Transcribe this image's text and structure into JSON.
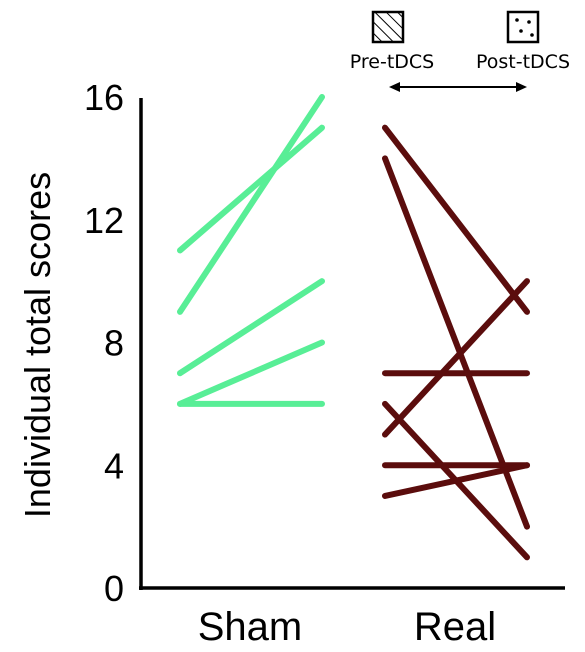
{
  "chart_data": {
    "type": "line",
    "title": "",
    "xlabel": "",
    "ylabel": "Individual total scores",
    "ylim": [
      0,
      16
    ],
    "yticks": [
      0,
      4,
      8,
      12,
      16
    ],
    "categories": [
      "Sham",
      "Real"
    ],
    "legend": {
      "placement": "top-right",
      "entries": [
        {
          "label": "Pre-tDCS",
          "pattern": "hatch"
        },
        {
          "label": "Post-tDCS",
          "pattern": "dots"
        }
      ]
    },
    "groups": [
      {
        "category": "Sham",
        "color": "#58ee96",
        "lines": [
          {
            "pre": 11,
            "post": 15
          },
          {
            "pre": 9,
            "post": 16
          },
          {
            "pre": 7,
            "post": 10
          },
          {
            "pre": 6,
            "post": 8
          },
          {
            "pre": 6,
            "post": 6
          }
        ]
      },
      {
        "category": "Real",
        "color": "#5b0d0d",
        "lines": [
          {
            "pre": 15,
            "post": 9
          },
          {
            "pre": 14,
            "post": 2
          },
          {
            "pre": 7,
            "post": 7
          },
          {
            "pre": 6,
            "post": 1
          },
          {
            "pre": 5,
            "post": 10
          },
          {
            "pre": 4,
            "post": 4
          },
          {
            "pre": 3,
            "post": 4
          }
        ]
      }
    ]
  }
}
